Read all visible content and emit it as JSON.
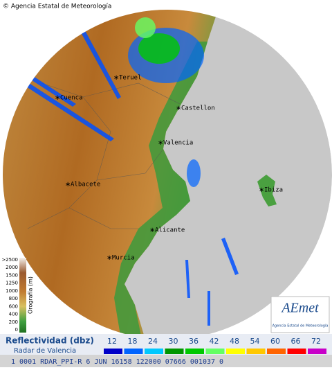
{
  "credit": "© Agencia Estatal de Meteorología",
  "cities": [
    "Teruel",
    "Cuenca",
    "Castellon",
    "Valencia",
    "Albacete",
    "Ibiza",
    "Alicante",
    "Murcia"
  ],
  "orography": {
    "title": "Orografía (m)",
    "labels": [
      ">2500",
      "2000",
      "1500",
      "1250",
      "1000",
      "800",
      "600",
      "400",
      "200",
      "0"
    ]
  },
  "legend": {
    "title": "Reflectividad (dbz)",
    "subtitle": "Radar de Valencia",
    "scale": [
      {
        "value": 12,
        "color": "#0000c8"
      },
      {
        "value": 18,
        "color": "#0064ff"
      },
      {
        "value": 24,
        "color": "#00c8ff"
      },
      {
        "value": 30,
        "color": "#009600"
      },
      {
        "value": 36,
        "color": "#00c800"
      },
      {
        "value": 42,
        "color": "#64ff64"
      },
      {
        "value": 48,
        "color": "#ffff00"
      },
      {
        "value": 54,
        "color": "#ffc800"
      },
      {
        "value": 60,
        "color": "#ff6400"
      },
      {
        "value": 66,
        "color": "#ff0000"
      },
      {
        "value": 72,
        "color": "#c800c8"
      }
    ]
  },
  "logo": {
    "name": "AEmet",
    "caption": "Agencia Estatal de Meteorología"
  },
  "status": "1 0001 RDAR_PPI-R  6 JUN 16158 122000 07666 001037 0"
}
